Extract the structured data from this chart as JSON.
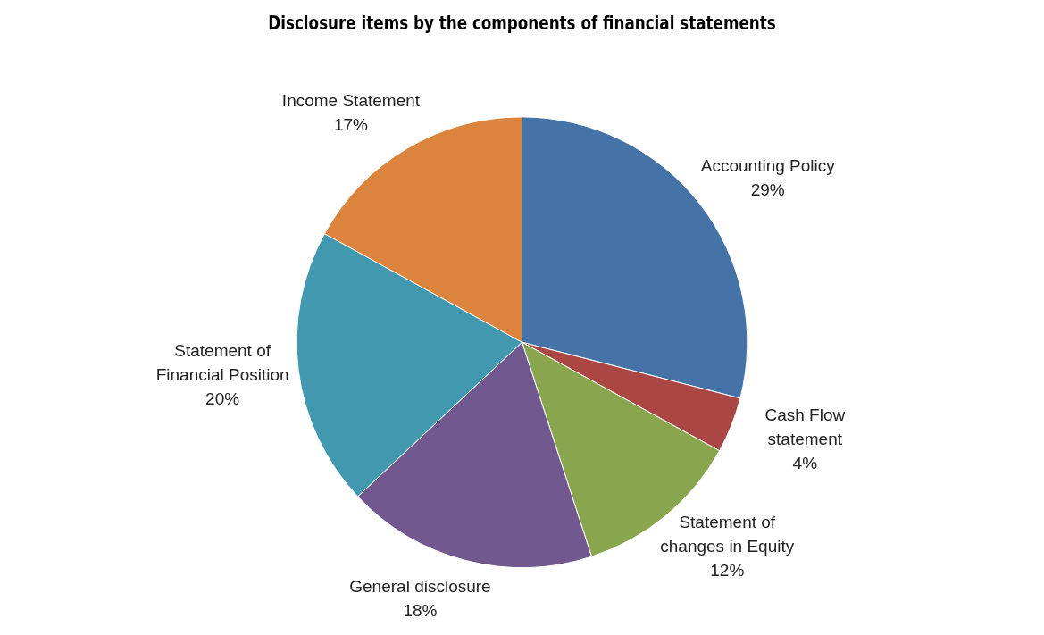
{
  "chart_data": {
    "type": "pie",
    "title": "Disclosure items by the components of financial statements",
    "categories": [
      "Accounting Policy",
      "Cash Flow statement",
      "Statement of changes in Equity",
      "General disclosure",
      "Statement of Financial Position",
      "Income Statement"
    ],
    "values": [
      29,
      4,
      12,
      18,
      20,
      17
    ],
    "value_labels": [
      "29%",
      "4%",
      "12%",
      "18%",
      "20%",
      "17%"
    ],
    "colors": [
      "#4572a7",
      "#aa4643",
      "#89a54e",
      "#71588f",
      "#4198af",
      "#db843d"
    ]
  }
}
